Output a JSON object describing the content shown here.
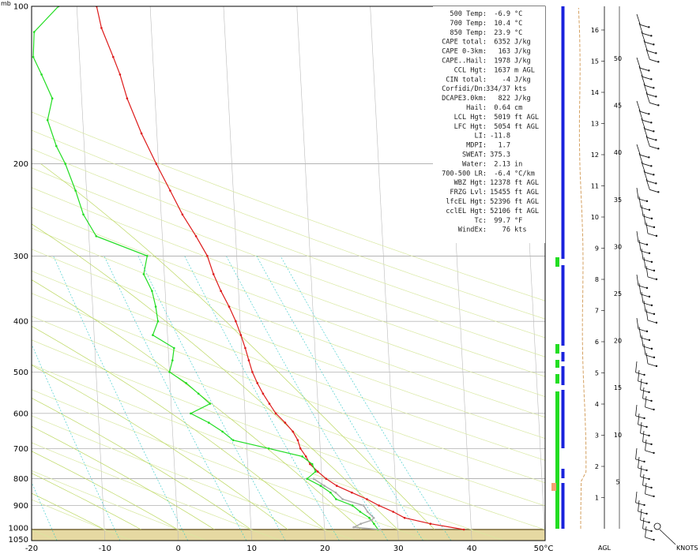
{
  "labels": {
    "mb": "mb",
    "agl": "AGL",
    "knots": "KNOTS"
  },
  "colors": {
    "temperature": "#dd1a1a",
    "dewpoint": "#22dd22",
    "wetbulb": "#aaaaaa",
    "isotherm": "#bbbbbb",
    "dry_adiabat": "#d8e8a0",
    "moist_adiabat": "#bcd860",
    "mixing_ratio": "#30c8c8",
    "ground": "#e6d9a2",
    "virtual_temp": "#d4a060",
    "bar_blue": "#1a22dd",
    "bar_green": "#22dd22",
    "bar_orange": "#f4a070"
  },
  "chart_data": {
    "type": "line",
    "title": "",
    "xlabel": "",
    "ylabel": "mb",
    "xlim": [
      -20,
      50
    ],
    "ylim": [
      1050,
      100
    ],
    "y_scale": "log",
    "x_ticks": [
      "-20",
      "-10",
      "0",
      "10",
      "20",
      "30",
      "40",
      "50°C"
    ],
    "y_ticks": [
      "100",
      "200",
      "300",
      "400",
      "500",
      "600",
      "700",
      "800",
      "900",
      "1000",
      "1050"
    ],
    "legend": "none",
    "series": [
      {
        "color": "#dd1a1a",
        "points": [
          [
            1000,
            39
          ],
          [
            975,
            34.5
          ],
          [
            950,
            31
          ],
          [
            925,
            29.5
          ],
          [
            900,
            27.6
          ],
          [
            875,
            26
          ],
          [
            850,
            24
          ],
          [
            825,
            22
          ],
          [
            800,
            20.6
          ],
          [
            775,
            19.5
          ],
          [
            750,
            18.5
          ],
          [
            725,
            18
          ],
          [
            700,
            17.3
          ],
          [
            675,
            17
          ],
          [
            650,
            16.4
          ],
          [
            625,
            15.4
          ],
          [
            600,
            14.2
          ],
          [
            575,
            13.4
          ],
          [
            550,
            12.6
          ],
          [
            525,
            11.9
          ],
          [
            500,
            11.3
          ],
          [
            475,
            10.9
          ],
          [
            450,
            10.5
          ],
          [
            425,
            10
          ],
          [
            400,
            9.4
          ],
          [
            375,
            8.6
          ],
          [
            350,
            7.6
          ],
          [
            325,
            6.7
          ],
          [
            300,
            6
          ],
          [
            275,
            4.6
          ],
          [
            250,
            2.9
          ],
          [
            225,
            1.4
          ],
          [
            200,
            -0.3
          ],
          [
            175,
            -2.1
          ],
          [
            150,
            -3.8
          ],
          [
            135,
            -4.6
          ],
          [
            125,
            -5.4
          ],
          [
            110,
            -6.8
          ],
          [
            100,
            -7.3
          ]
        ]
      },
      {
        "color": "#22dd22",
        "points": [
          [
            1000,
            27.3
          ],
          [
            975,
            26.8
          ],
          [
            950,
            26.2
          ],
          [
            925,
            25
          ],
          [
            900,
            24
          ],
          [
            875,
            21.8
          ],
          [
            850,
            21.1
          ],
          [
            825,
            19.8
          ],
          [
            800,
            18
          ],
          [
            775,
            19.2
          ],
          [
            750,
            18.8
          ],
          [
            725,
            17.5
          ],
          [
            700,
            13
          ],
          [
            675,
            8.2
          ],
          [
            650,
            6.8
          ],
          [
            625,
            5
          ],
          [
            600,
            2.6
          ],
          [
            575,
            5.3
          ],
          [
            550,
            3.8
          ],
          [
            525,
            2.2
          ],
          [
            500,
            0
          ],
          [
            475,
            0.5
          ],
          [
            450,
            0.8
          ],
          [
            425,
            -2
          ],
          [
            400,
            -1.2
          ],
          [
            375,
            -1.4
          ],
          [
            350,
            -1.8
          ],
          [
            325,
            -2.8
          ],
          [
            300,
            -2.2
          ],
          [
            275,
            -9
          ],
          [
            250,
            -10.6
          ],
          [
            225,
            -11.5
          ],
          [
            200,
            -12.7
          ],
          [
            185,
            -13.8
          ],
          [
            165,
            -14.8
          ],
          [
            150,
            -14
          ],
          [
            135,
            -15.3
          ],
          [
            125,
            -16.3
          ],
          [
            112,
            -16
          ],
          [
            100,
            -12.5
          ]
        ]
      },
      {
        "color": "#aaaaaa",
        "points": [
          [
            1000,
            27.6
          ],
          [
            990,
            24
          ],
          [
            975,
            25
          ],
          [
            960,
            26.5
          ],
          [
            950,
            26.8
          ],
          [
            925,
            26
          ],
          [
            900,
            25.5
          ],
          [
            875,
            22.7
          ],
          [
            850,
            21.8
          ],
          [
            825,
            20.3
          ],
          [
            800,
            18.9
          ]
        ]
      }
    ],
    "height_axis": {
      "label": "AGL",
      "ticks": [
        "1",
        "2",
        "3",
        "4",
        "5",
        "6",
        "7",
        "8",
        "9",
        "10",
        "11",
        "12",
        "13",
        "14",
        "15",
        "16"
      ]
    },
    "wind_axis": {
      "label": "KNOTS",
      "ticks": [
        "5",
        "10",
        "15",
        "20",
        "25",
        "30",
        "35",
        "40",
        "45",
        "50"
      ]
    }
  },
  "parameters": [
    {
      "name": "500 Temp:",
      "value": "-6.9",
      "unit": "°C"
    },
    {
      "name": "700 Temp:",
      "value": "10.4",
      "unit": "°C"
    },
    {
      "name": "850 Temp:",
      "value": "23.9",
      "unit": "°C"
    },
    {
      "name": "CAPE total:",
      "value": "6352",
      "unit": "J/kg"
    },
    {
      "name": "CAPE 0-3km:",
      "value": "163",
      "unit": "J/kg"
    },
    {
      "name": "CAPE..Hail:",
      "value": "1978",
      "unit": "J/kg"
    },
    {
      "name": "CCL Hgt:",
      "value": "1637",
      "unit": "m AGL"
    },
    {
      "name": "CIN total:",
      "value": "-4",
      "unit": "J/kg"
    },
    {
      "name": "Corfidi/Dn:",
      "value": "334/37",
      "unit": "kts"
    },
    {
      "name": "DCAPE3.0km:",
      "value": "822",
      "unit": "J/kg"
    },
    {
      "name": "Hail:",
      "value": "0.64",
      "unit": "cm"
    },
    {
      "name": "LCL Hgt:",
      "value": "5019",
      "unit": "ft AGL"
    },
    {
      "name": "LFC Hgt:",
      "value": "5054",
      "unit": "ft AGL"
    },
    {
      "name": "LI:",
      "value": "-11.8",
      "unit": ""
    },
    {
      "name": "MDPI:",
      "value": "1.7",
      "unit": ""
    },
    {
      "name": "SWEAT:",
      "value": "375.3",
      "unit": ""
    },
    {
      "name": "Water:",
      "value": "2.13",
      "unit": "in"
    },
    {
      "name": "700-500 LR:",
      "value": "-6.4",
      "unit": "°C/km"
    },
    {
      "name": "WBZ Hgt:",
      "value": "12378",
      "unit": "ft AGL"
    },
    {
      "name": "FRZG Lvl:",
      "value": "15455",
      "unit": "ft AGL"
    },
    {
      "name": "lfcEL Hgt:",
      "value": "52396",
      "unit": "ft AGL"
    },
    {
      "name": "cclEL Hgt:",
      "value": "52106",
      "unit": "ft AGL"
    },
    {
      "name": "Tc:",
      "value": "99.7",
      "unit": "°F"
    },
    {
      "name": "WindEx:",
      "value": "76",
      "unit": "kts"
    }
  ]
}
